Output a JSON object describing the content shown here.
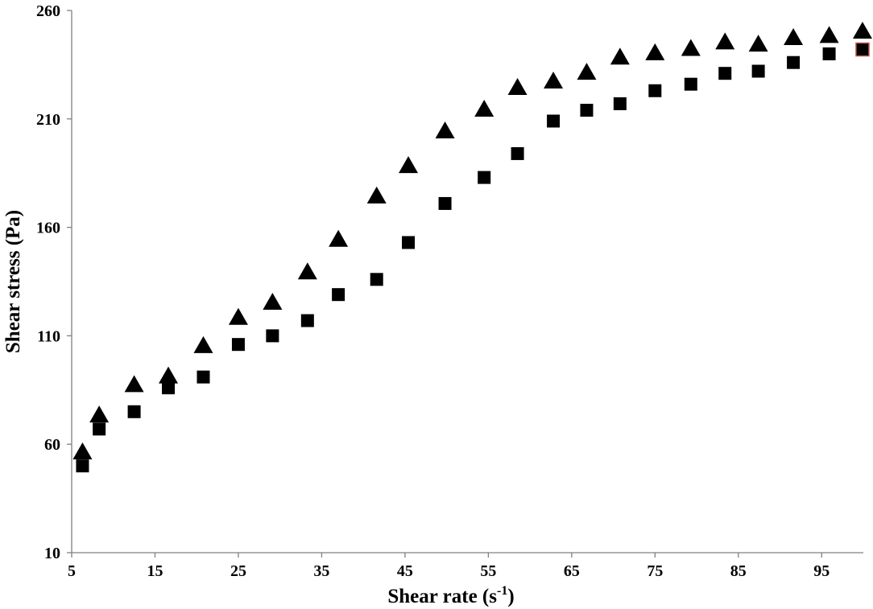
{
  "chart_data": {
    "type": "scatter",
    "title": "",
    "xlabel": "Shear rate (s",
    "xlabel_sup": "-1",
    "xlabel_suffix": ")",
    "ylabel": "Shear stress (Pa)",
    "xlim": [
      5,
      100
    ],
    "ylim": [
      10,
      260
    ],
    "xticks": [
      5,
      15,
      25,
      35,
      45,
      55,
      65,
      75,
      85,
      95
    ],
    "yticks": [
      10,
      60,
      110,
      160,
      210,
      260
    ],
    "grid": false,
    "legend": "none",
    "series": [
      {
        "marker": "triangle",
        "color": "#000000",
        "points": [
          [
            6.3,
            56
          ],
          [
            8.3,
            73
          ],
          [
            12.5,
            87
          ],
          [
            16.6,
            91
          ],
          [
            20.8,
            105
          ],
          [
            25,
            118
          ],
          [
            29.1,
            125
          ],
          [
            33.3,
            139
          ],
          [
            37,
            154
          ],
          [
            41.6,
            174
          ],
          [
            45.4,
            188
          ],
          [
            49.8,
            204
          ],
          [
            54.5,
            214
          ],
          [
            58.5,
            224
          ],
          [
            62.8,
            227
          ],
          [
            66.8,
            231
          ],
          [
            70.8,
            238
          ],
          [
            75,
            240
          ],
          [
            79.3,
            242
          ],
          [
            83.4,
            245
          ],
          [
            87.4,
            244
          ],
          [
            91.6,
            247
          ],
          [
            95.9,
            248
          ],
          [
            99.9,
            250
          ]
        ]
      },
      {
        "marker": "square",
        "color": "#000000",
        "points": [
          [
            6.3,
            50
          ],
          [
            8.3,
            67
          ],
          [
            12.5,
            75
          ],
          [
            16.6,
            86
          ],
          [
            20.8,
            91
          ],
          [
            25,
            106
          ],
          [
            29.1,
            110
          ],
          [
            33.3,
            117
          ],
          [
            37,
            129
          ],
          [
            41.6,
            136
          ],
          [
            45.4,
            153
          ],
          [
            49.8,
            171
          ],
          [
            54.5,
            183
          ],
          [
            58.5,
            194
          ],
          [
            62.8,
            209
          ],
          [
            66.8,
            214
          ],
          [
            70.8,
            217
          ],
          [
            75,
            223
          ],
          [
            79.3,
            226
          ],
          [
            83.4,
            231
          ],
          [
            87.4,
            232
          ],
          [
            91.6,
            236
          ],
          [
            95.9,
            240
          ],
          [
            99.9,
            242
          ]
        ]
      }
    ]
  }
}
